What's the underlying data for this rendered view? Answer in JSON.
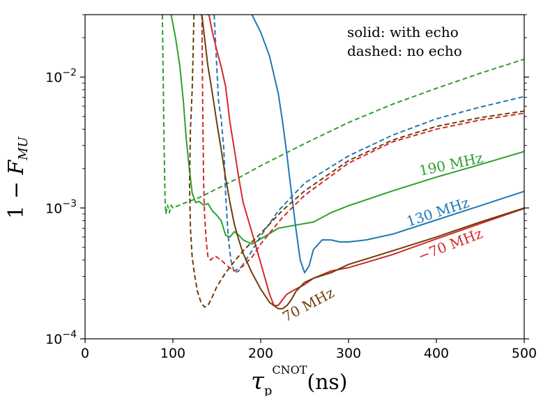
{
  "chart_data": {
    "type": "line",
    "xlabel": "τ_p^CNOT(ns)",
    "ylabel": "1 − F_MU",
    "xlim": [
      0,
      500
    ],
    "ylim": [
      0.0001,
      0.03
    ],
    "yscale": "log",
    "grid": false,
    "x_ticks": [
      "0",
      "100",
      "200",
      "300",
      "400",
      "500"
    ],
    "y_ticks": [
      "10^-4",
      "10^-3",
      "10^-2"
    ],
    "note_lines": [
      "solid: with echo",
      "dashed: no echo"
    ],
    "annotations": [
      {
        "text": "190 MHz",
        "color": "#2ca02c"
      },
      {
        "text": "130 MHz",
        "color": "#1f77b4"
      },
      {
        "text": "−70 MHz",
        "color": "#d62728"
      },
      {
        "text": "70 MHz",
        "color": "#6b3e0a"
      }
    ],
    "series": [
      {
        "label_ref": "190 MHz",
        "style": "solid",
        "color": "#2ca02c",
        "x": [
          98,
          103,
          108,
          112,
          115,
          118,
          122,
          126,
          130,
          135,
          140,
          145,
          150,
          155,
          160,
          165,
          170,
          175,
          180,
          190,
          200,
          220,
          240,
          260,
          280,
          300,
          350,
          400,
          450,
          500
        ],
        "y": [
          0.03,
          0.02,
          0.012,
          0.0065,
          0.0035,
          0.0022,
          0.0013,
          0.0011,
          0.00112,
          0.00105,
          0.00108,
          0.00095,
          0.00088,
          0.0008,
          0.00062,
          0.0006,
          0.00066,
          0.00062,
          0.00057,
          0.00053,
          0.00058,
          0.0007,
          0.00074,
          0.00078,
          0.00092,
          0.00104,
          0.00135,
          0.00172,
          0.00215,
          0.0027
        ]
      },
      {
        "label_ref": "190 MHz",
        "style": "dashed",
        "color": "#2ca02c",
        "x": [
          88,
          89,
          90,
          91,
          92,
          94,
          96,
          98,
          100,
          110,
          130,
          150,
          175,
          200,
          250,
          300,
          350,
          400,
          450,
          500
        ],
        "y": [
          0.03,
          0.01,
          0.003,
          0.0012,
          0.0009,
          0.00105,
          0.00092,
          0.00105,
          0.001,
          0.00107,
          0.0012,
          0.0014,
          0.0017,
          0.0021,
          0.0031,
          0.0045,
          0.0062,
          0.0082,
          0.0107,
          0.0137
        ]
      },
      {
        "label_ref": "130 MHz",
        "style": "solid",
        "color": "#1f77b4",
        "x": [
          190,
          200,
          210,
          220,
          225,
          230,
          235,
          240,
          245,
          250,
          255,
          260,
          270,
          280,
          290,
          300,
          320,
          350,
          400,
          450,
          500
        ],
        "y": [
          0.03,
          0.022,
          0.0145,
          0.0075,
          0.0045,
          0.0025,
          0.0013,
          0.0007,
          0.0004,
          0.00032,
          0.00036,
          0.00048,
          0.00057,
          0.00057,
          0.00055,
          0.00055,
          0.00057,
          0.00063,
          0.00081,
          0.00104,
          0.00134
        ]
      },
      {
        "label_ref": "130 MHz",
        "style": "dashed",
        "color": "#1f77b4",
        "x": [
          147,
          150,
          152,
          155,
          158,
          160,
          163,
          166,
          170,
          175,
          180,
          190,
          200,
          220,
          250,
          300,
          350,
          400,
          450,
          500
        ],
        "y": [
          0.03,
          0.012,
          0.0065,
          0.0048,
          0.0028,
          0.0013,
          0.0006,
          0.0004,
          0.00032,
          0.00033,
          0.00037,
          0.00047,
          0.00061,
          0.00095,
          0.00155,
          0.0025,
          0.0036,
          0.0048,
          0.0059,
          0.0071
        ]
      },
      {
        "label_ref": "−70 MHz",
        "style": "solid",
        "color": "#d62728",
        "x": [
          139,
          141,
          145,
          150,
          155,
          160,
          165,
          170,
          175,
          180,
          190,
          200,
          210,
          215,
          220,
          225,
          230,
          240,
          250,
          260,
          280,
          300,
          350,
          400,
          450,
          500
        ],
        "y": [
          0.03,
          0.03,
          0.022,
          0.016,
          0.012,
          0.0085,
          0.0045,
          0.0028,
          0.0017,
          0.0011,
          0.00065,
          0.00038,
          0.00022,
          0.00018,
          0.00018,
          0.0002,
          0.00022,
          0.00024,
          0.00026,
          0.00029,
          0.00033,
          0.00035,
          0.00044,
          0.00058,
          0.00076,
          0.00099
        ]
      },
      {
        "label_ref": "−70 MHz",
        "style": "dashed",
        "color": "#d62728",
        "x": [
          133,
          134,
          135,
          136,
          138,
          140,
          143,
          148,
          155,
          162,
          170,
          180,
          190,
          200,
          225,
          250,
          300,
          350,
          400,
          450,
          500
        ],
        "y": [
          0.03,
          0.006,
          0.0016,
          0.0009,
          0.00055,
          0.00042,
          0.0004,
          0.00043,
          0.0004,
          0.00036,
          0.00033,
          0.00036,
          0.00042,
          0.00053,
          0.00085,
          0.00125,
          0.0022,
          0.0032,
          0.004,
          0.0047,
          0.0053
        ]
      },
      {
        "label_ref": "70 MHz",
        "style": "solid",
        "color": "#6b3e0a",
        "x": [
          131,
          133,
          136,
          140,
          145,
          150,
          155,
          160,
          165,
          170,
          175,
          180,
          190,
          200,
          210,
          220,
          225,
          230,
          235,
          240,
          250,
          260,
          280,
          300,
          350,
          400,
          450,
          500
        ],
        "y": [
          0.03,
          0.03,
          0.02,
          0.012,
          0.0075,
          0.0045,
          0.0028,
          0.0017,
          0.0011,
          0.00075,
          0.00057,
          0.00045,
          0.00032,
          0.00024,
          0.00019,
          0.00017,
          0.00017,
          0.00018,
          0.0002,
          0.00023,
          0.00027,
          0.00029,
          0.00032,
          0.00037,
          0.00047,
          0.0006,
          0.00078,
          0.001
        ]
      },
      {
        "label_ref": "70 MHz",
        "style": "dashed",
        "color": "#6b3e0a",
        "x": [
          124,
          123,
          122,
          120,
          119,
          120,
          122,
          125,
          128,
          132,
          136,
          140,
          145,
          150,
          160,
          170,
          180,
          190,
          200,
          225,
          250,
          300,
          350,
          400,
          450,
          500
        ],
        "y": [
          0.03,
          0.015,
          0.008,
          0.004,
          0.0015,
          0.0007,
          0.00042,
          0.0003,
          0.00023,
          0.00019,
          0.000175,
          0.00018,
          0.00021,
          0.00025,
          0.00032,
          0.00039,
          0.00047,
          0.00055,
          0.00064,
          0.00096,
          0.00135,
          0.0023,
          0.0033,
          0.0042,
          0.0049,
          0.0055
        ]
      }
    ]
  }
}
